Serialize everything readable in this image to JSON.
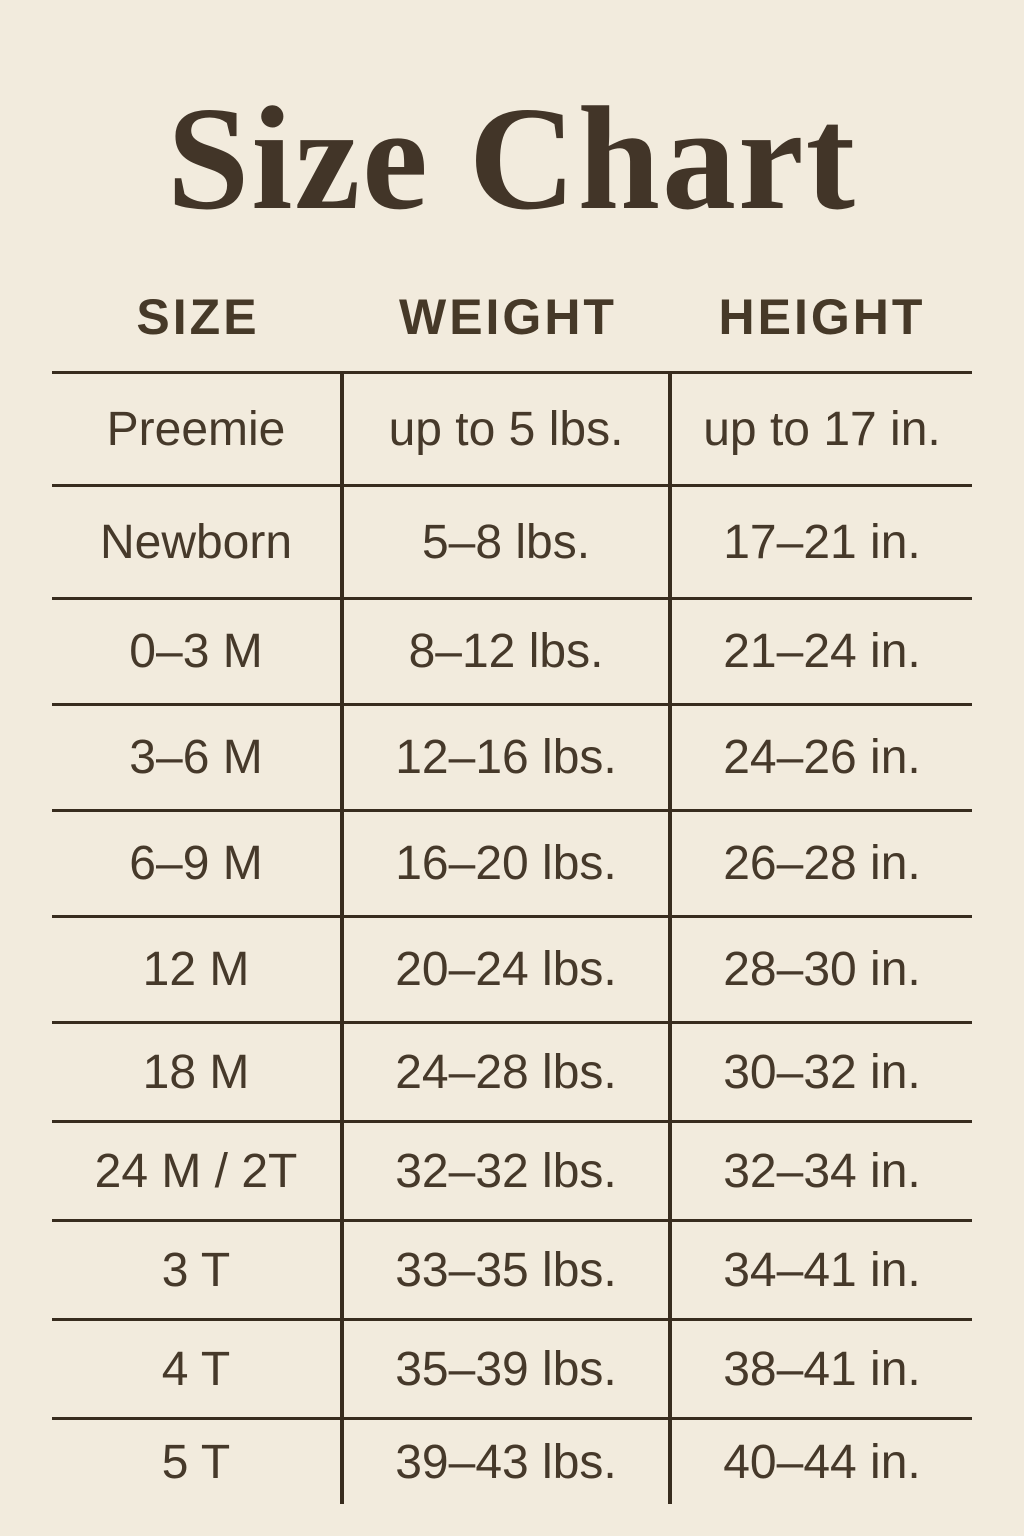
{
  "title": "Size Chart",
  "chart_data": {
    "type": "table",
    "title": "Size Chart",
    "columns": [
      "SIZE",
      "WEIGHT",
      "HEIGHT"
    ],
    "rows": [
      [
        "Preemie",
        "up to 5 lbs.",
        "up to 17 in."
      ],
      [
        "Newborn",
        "5–8 lbs.",
        "17–21 in."
      ],
      [
        "0–3 M",
        "8–12 lbs.",
        "21–24 in."
      ],
      [
        "3–6 M",
        "12–16 lbs.",
        "24–26 in."
      ],
      [
        "6–9 M",
        "16–20 lbs.",
        "26–28 in."
      ],
      [
        "12 M",
        "20–24 lbs.",
        "28–30 in."
      ],
      [
        "18 M",
        "24–28 lbs.",
        "30–32 in."
      ],
      [
        "24 M / 2T",
        "32–32 lbs.",
        "32–34 in."
      ],
      [
        "3 T",
        "33–35 lbs.",
        "34–41 in."
      ],
      [
        "4 T",
        "35–39 lbs.",
        "38–41 in."
      ],
      [
        "5 T",
        "39–43 lbs.",
        "40–44 in."
      ]
    ],
    "layout": {
      "grid": "horizontal rules between rows, vertical rules between columns, no outer border, no rule after last row",
      "alignment": "all cells centered"
    }
  },
  "colors": {
    "background": "#f2ebdd",
    "text": "#46392a",
    "title_text": "#423528",
    "rule_lines": "#382c1e"
  }
}
